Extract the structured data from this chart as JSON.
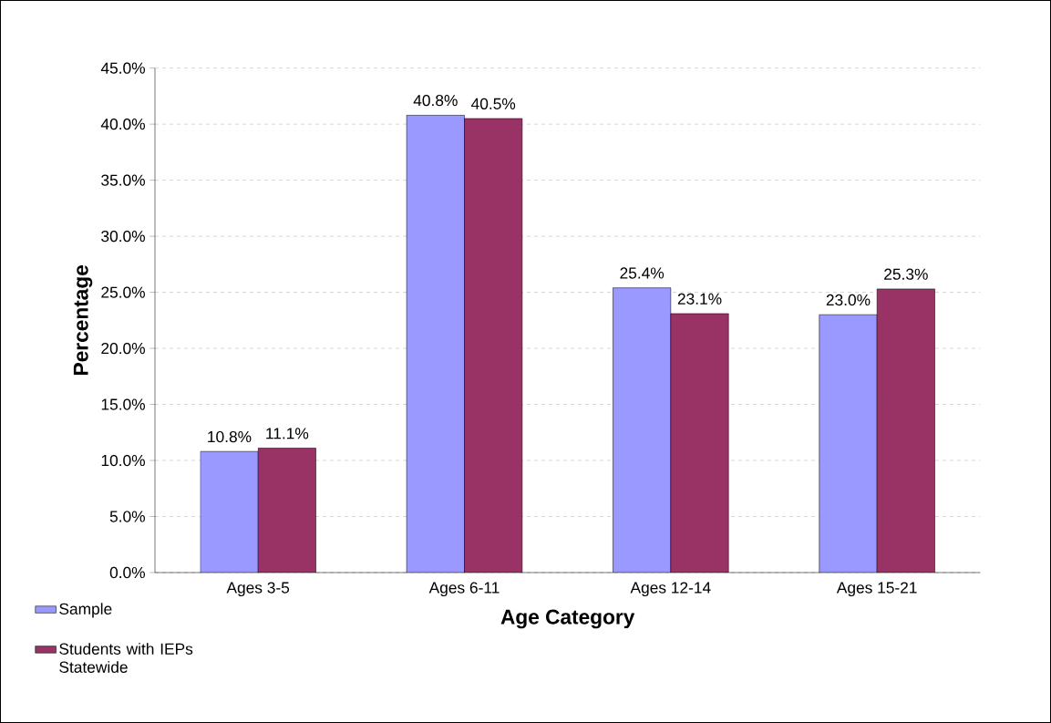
{
  "chart_data": {
    "type": "bar",
    "xlabel": "Age Category",
    "ylabel": "Percentage",
    "categories": [
      "Ages 3-5",
      "Ages 6-11",
      "Ages 12-14",
      "Ages 15-21"
    ],
    "series": [
      {
        "name": "Sample",
        "color": "#9999ff",
        "values": [
          10.8,
          40.8,
          25.4,
          23.0
        ],
        "value_labels": [
          "10.8%",
          "40.8%",
          "25.4%",
          "23.0%"
        ]
      },
      {
        "name": "Students with IEPs Statewide",
        "color": "#993366",
        "values": [
          11.1,
          40.5,
          23.1,
          25.3
        ],
        "value_labels": [
          "11.1%",
          "40.5%",
          "23.1%",
          "25.3%"
        ]
      }
    ],
    "ylim": [
      0,
      45
    ],
    "yticks": [
      {
        "value": 0,
        "label": "0.0%"
      },
      {
        "value": 5,
        "label": "5.0%"
      },
      {
        "value": 10,
        "label": "10.0%"
      },
      {
        "value": 15,
        "label": "15.0%"
      },
      {
        "value": 20,
        "label": "20.0%"
      },
      {
        "value": 25,
        "label": "25.0%"
      },
      {
        "value": 30,
        "label": "30.0%"
      },
      {
        "value": 35,
        "label": "35.0%"
      },
      {
        "value": 40,
        "label": "40.0%"
      },
      {
        "value": 45,
        "label": "45.0%"
      }
    ],
    "grid": "y",
    "legend": "bottom left"
  }
}
